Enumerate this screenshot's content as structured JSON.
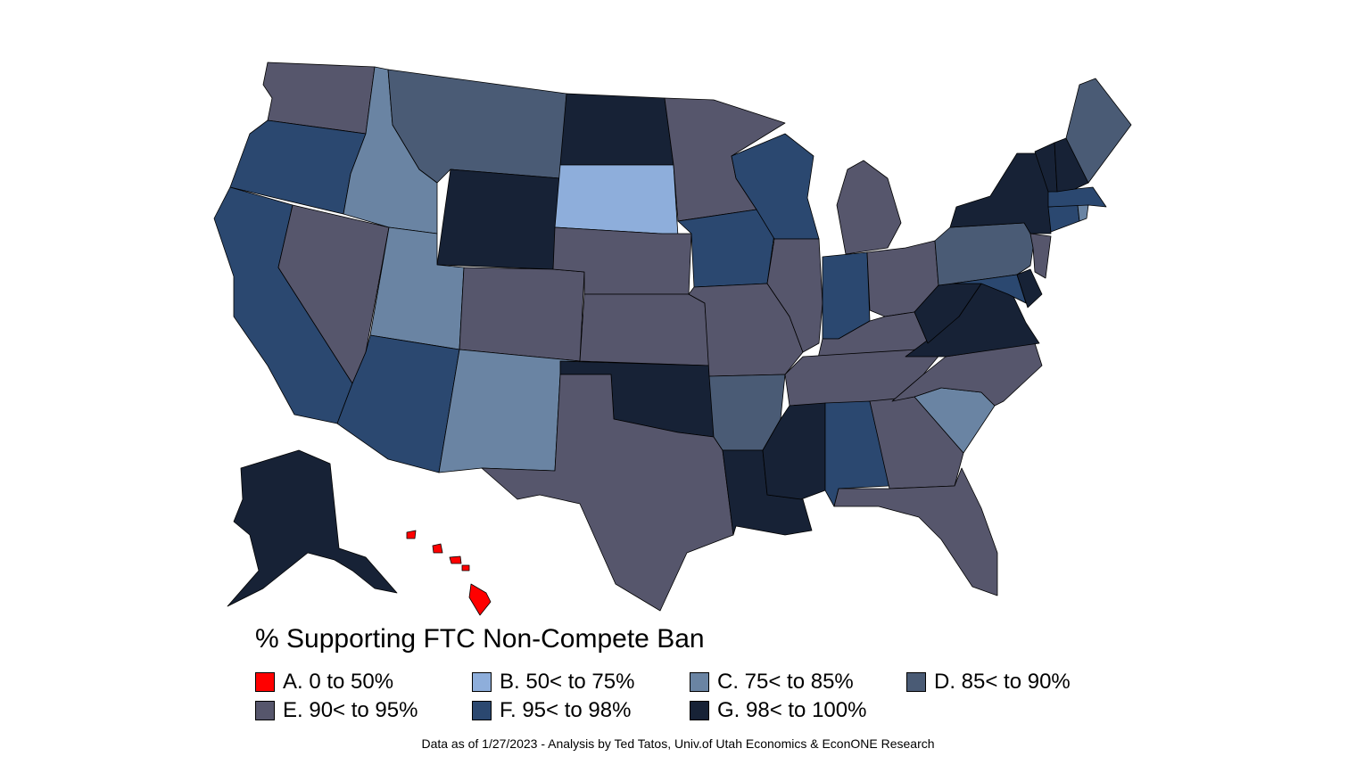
{
  "legend": {
    "title": "% Supporting FTC Non-Compete Ban",
    "classes": [
      {
        "key": "A",
        "label": "A. 0 to 50%",
        "color": "#ff0000"
      },
      {
        "key": "B",
        "label": "B. 50< to 75%",
        "color": "#8eaedb"
      },
      {
        "key": "C",
        "label": "C. 75< to 85%",
        "color": "#6a84a3"
      },
      {
        "key": "D",
        "label": "D. 85< to 90%",
        "color": "#4a5b75"
      },
      {
        "key": "E",
        "label": "E. 90< to 95%",
        "color": "#56566c"
      },
      {
        "key": "F",
        "label": "F. 95< to 98%",
        "color": "#2b4870"
      },
      {
        "key": "G",
        "label": "G. 98< to 100%",
        "color": "#172236"
      }
    ]
  },
  "states": {
    "WA": "E",
    "OR": "F",
    "CA": "F",
    "NV": "E",
    "ID": "C",
    "MT": "D",
    "WY": "G",
    "UT": "C",
    "AZ": "F",
    "CO": "E",
    "NM": "C",
    "ND": "G",
    "SD": "B",
    "NE": "E",
    "KS": "E",
    "OK": "G",
    "TX": "E",
    "MN": "E",
    "IA": "F",
    "MO": "E",
    "AR": "D",
    "LA": "G",
    "WI": "F",
    "IL": "E",
    "MI": "E",
    "IN": "F",
    "OH": "E",
    "KY": "E",
    "TN": "E",
    "MS": "G",
    "AL": "F",
    "GA": "E",
    "FL": "E",
    "SC": "C",
    "NC": "E",
    "VA": "G",
    "WV": "G",
    "MD": "F",
    "DE": "G",
    "PA": "D",
    "NJ": "E",
    "NY": "G",
    "CT": "F",
    "RI": "C",
    "MA": "F",
    "VT": "G",
    "NH": "G",
    "ME": "D",
    "AK": "G",
    "HI": "A"
  },
  "footnote": "Data as of 1/27/2023 - Analysis by Ted Tatos, Univ.of Utah Economics & EconONE Research"
}
